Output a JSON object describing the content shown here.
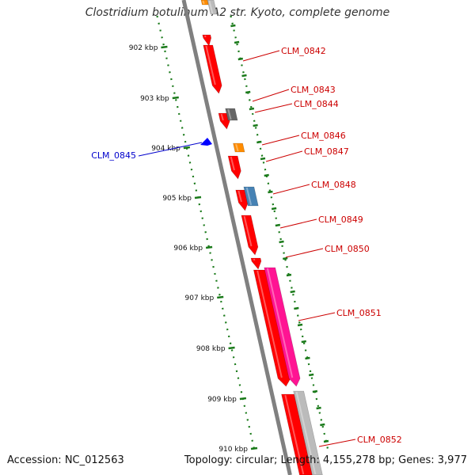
{
  "header": {
    "title": "Clostridium botulinum A2 str. Kyoto, complete genome"
  },
  "footer": {
    "accession": "Accession: NC_012563",
    "summary": "Topology: circular; Length: 4,155,278 bp; Genes: 3,977"
  },
  "ruler": {
    "ticks": [
      "902 kbp",
      "903 kbp",
      "904 kbp",
      "905 kbp",
      "906 kbp",
      "907 kbp",
      "908 kbp",
      "909 kbp",
      "910 kbp"
    ],
    "color": "#1a7a1a"
  },
  "backbone": {
    "color": "#7f7f7f"
  },
  "genes": [
    {
      "label": "CLM_0842",
      "color": "#ff0000",
      "label_color": "#cc0000"
    },
    {
      "label": "CLM_0843",
      "color": "#ff0000",
      "label_color": "#cc0000"
    },
    {
      "label": "CLM_0844",
      "color": "#666666",
      "label_color": "#cc0000"
    },
    {
      "label": "CLM_0845",
      "color": "#0000ff",
      "label_color": "#0000cc"
    },
    {
      "label": "CLM_0846",
      "color": "#ff8c00",
      "label_color": "#cc0000"
    },
    {
      "label": "CLM_0847",
      "color": "#ff0000",
      "label_color": "#cc0000"
    },
    {
      "label": "CLM_0848",
      "color": "#4682b4",
      "label_color": "#cc0000"
    },
    {
      "label": "CLM_0849",
      "color": "#ff0000",
      "label_color": "#cc0000"
    },
    {
      "label": "CLM_0850",
      "color": "#ff0000",
      "label_color": "#cc0000"
    },
    {
      "label": "CLM_0851",
      "color": "#ff1493",
      "label_color": "#cc0000"
    },
    {
      "label": "CLM_0852",
      "color": "#bbbbbb",
      "label_color": "#cc0000"
    }
  ]
}
